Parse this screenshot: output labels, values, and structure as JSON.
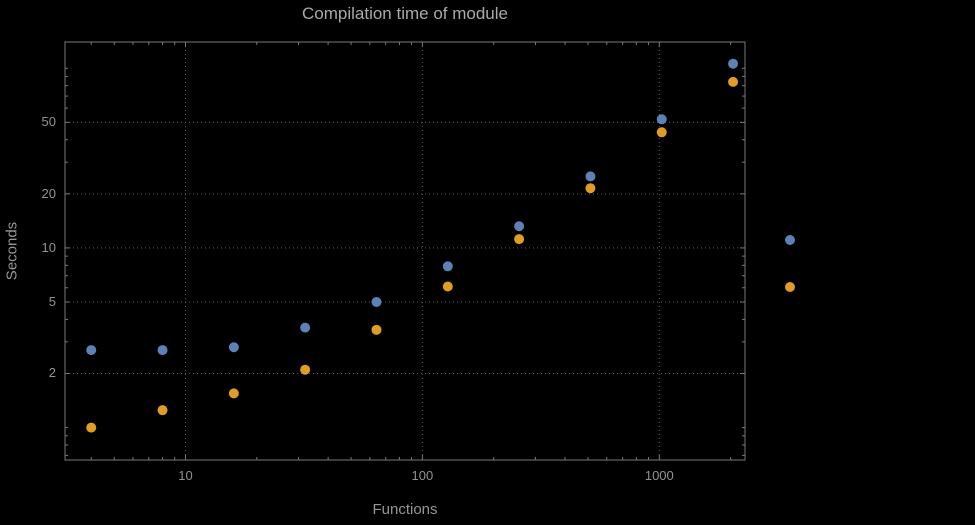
{
  "chart_data": {
    "type": "scatter",
    "title": "Compilation time of module",
    "xlabel": "Functions",
    "ylabel": "Seconds",
    "x_scale": "log",
    "y_scale": "log",
    "xlim": [
      3.1,
      2300
    ],
    "ylim": [
      0.66,
      140
    ],
    "x_ticks": [
      10,
      100,
      1000
    ],
    "x_tick_labels": [
      "10",
      "100",
      "1000"
    ],
    "y_ticks": [
      2,
      5,
      10,
      20,
      50
    ],
    "y_tick_labels": [
      "2",
      "5",
      "10",
      "20",
      "50"
    ],
    "grid": "dotted",
    "legend_position": "right-outside",
    "x": [
      4,
      8,
      16,
      32,
      64,
      128,
      256,
      512,
      1024,
      2048
    ],
    "series": [
      {
        "name": "blue",
        "color": "#5e81b5",
        "values": [
          2.7,
          2.7,
          2.8,
          3.6,
          5.0,
          7.9,
          13.2,
          25,
          52,
          106
        ]
      },
      {
        "name": "orange",
        "color": "#e19c24",
        "values": [
          1.0,
          1.25,
          1.55,
          2.1,
          3.5,
          6.1,
          11.2,
          21.5,
          44,
          84
        ]
      }
    ],
    "legend": {
      "markers": [
        {
          "series": "blue",
          "color": "#5e81b5"
        },
        {
          "series": "orange",
          "color": "#e19c24"
        }
      ]
    }
  }
}
